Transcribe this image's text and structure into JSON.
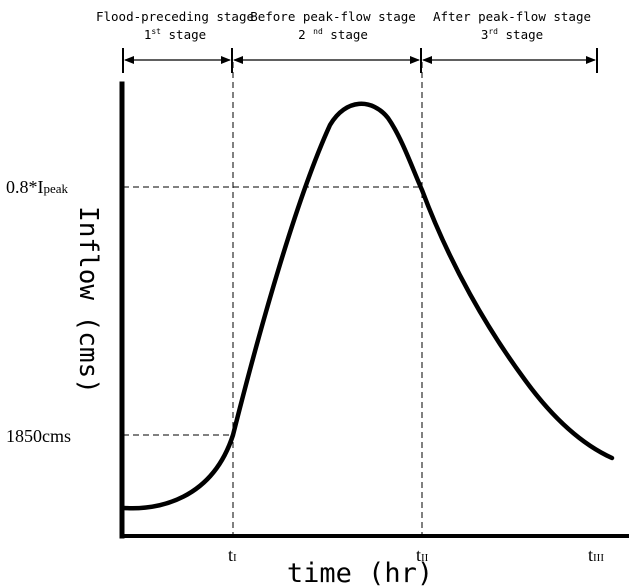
{
  "stages": [
    {
      "name": "Flood-preceding stage",
      "num": "1",
      "sup": "st",
      "word": " stage"
    },
    {
      "name": "Before peak-flow stage",
      "num": "2 ",
      "sup": "nd",
      "word": " stage"
    },
    {
      "name": "After peak-flow stage",
      "num": "3",
      "sup": "rd",
      "word": " stage"
    }
  ],
  "ylabel": "Inflow (cms)",
  "xlabel": "time (hr)",
  "y_markers": {
    "peak": {
      "prefix": "0.8*I",
      "sub": "peak"
    },
    "base": "1850cms"
  },
  "x_markers": [
    {
      "base": "t",
      "sub": "I"
    },
    {
      "base": "t",
      "sub": "II"
    },
    {
      "base": "t",
      "sub": "III"
    }
  ]
}
